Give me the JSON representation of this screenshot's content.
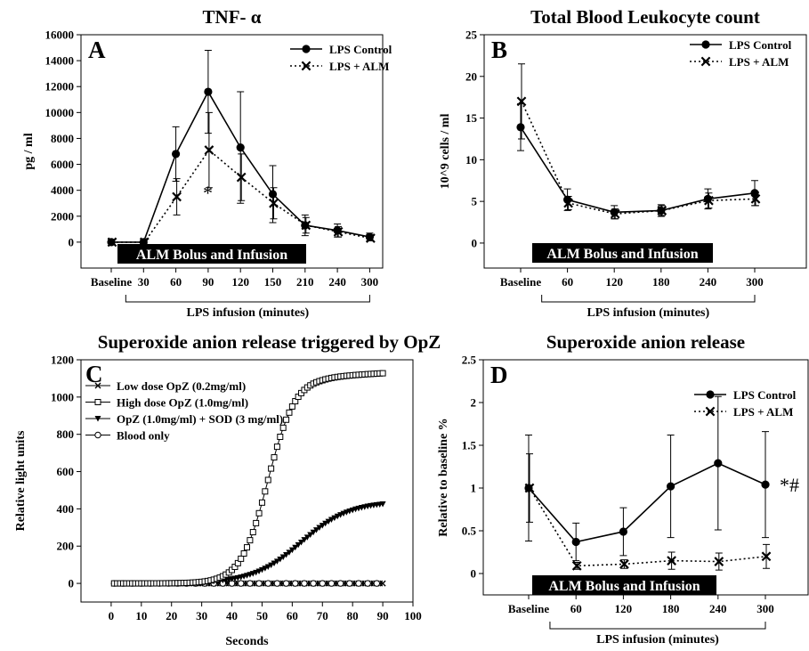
{
  "colors": {
    "ink": "#000000",
    "background": "#ffffff",
    "bar_fill": "#000000",
    "bar_text": "#ffffff"
  },
  "chart_data": [
    {
      "type": "line",
      "panel_label": "A",
      "title": "TNF- α",
      "ylabel": "pg / ml",
      "xlabel": "LPS infusion (minutes)",
      "categories": [
        "Baseline",
        "30",
        "60",
        "90",
        "120",
        "150",
        "210",
        "240",
        "300"
      ],
      "ylim": [
        -2000,
        16000
      ],
      "yticks": [
        0,
        2000,
        4000,
        6000,
        8000,
        10000,
        12000,
        14000,
        16000
      ],
      "bar_label": "ALM Bolus and Infusion",
      "annotation": "*",
      "legend_position": "top-right",
      "series": [
        {
          "name": "LPS Control",
          "marker": "filled-circle",
          "line": "solid",
          "values": [
            0,
            0,
            6800,
            11600,
            7300,
            3700,
            1300,
            900,
            400
          ],
          "errors": [
            0,
            0,
            2100,
            3200,
            4300,
            2200,
            800,
            500,
            300
          ]
        },
        {
          "name": "LPS + ALM",
          "marker": "x",
          "line": "dotted",
          "values": [
            0,
            0,
            3500,
            7100,
            5000,
            3000,
            1300,
            800,
            300
          ],
          "errors": [
            0,
            0,
            1400,
            2900,
            1800,
            1200,
            600,
            400,
            200
          ]
        }
      ]
    },
    {
      "type": "line",
      "panel_label": "B",
      "title": "Total Blood Leukocyte count",
      "ylabel": "10^9 cells / ml",
      "xlabel": "LPS infusion (minutes)",
      "categories": [
        "Baseline",
        "60",
        "120",
        "180",
        "240",
        "300"
      ],
      "ylim": [
        -3,
        25
      ],
      "yticks": [
        0,
        5,
        10,
        15,
        20,
        25
      ],
      "bar_label": "ALM Bolus and Infusion",
      "legend_position": "top-right",
      "series": [
        {
          "name": "LPS Control",
          "marker": "filled-circle",
          "line": "solid",
          "values": [
            13.9,
            5.2,
            3.7,
            3.9,
            5.3,
            6.0
          ],
          "errors": [
            2.8,
            1.3,
            0.8,
            0.7,
            1.2,
            1.5
          ]
        },
        {
          "name": "LPS + ALM",
          "marker": "x",
          "line": "dotted",
          "values": [
            17.0,
            4.8,
            3.5,
            3.9,
            5.1,
            5.3
          ],
          "errors": [
            4.5,
            0.8,
            0.6,
            0.6,
            0.9,
            0.8
          ]
        }
      ]
    },
    {
      "type": "line",
      "panel_label": "C",
      "title": "Superoxide anion release triggered by OpZ",
      "ylabel": "Relative light units",
      "xlabel": "Seconds",
      "xlim": [
        -10,
        100
      ],
      "xticks": [
        0,
        10,
        20,
        30,
        40,
        50,
        60,
        70,
        80,
        90,
        100
      ],
      "ylim": [
        -100,
        1200
      ],
      "yticks": [
        0,
        200,
        400,
        600,
        800,
        1000,
        1200
      ],
      "legend_position": "top-left",
      "series": [
        {
          "name": "Low dose OpZ (0.2mg/ml)",
          "marker": "x-small",
          "curve": "sigmoid",
          "plateau": 0,
          "midpoint": 60,
          "width": 6
        },
        {
          "name": "High dose  OpZ (1.0mg/ml)",
          "marker": "open-square",
          "curve": "sigmoid",
          "plateau": 1110,
          "midpoint": 52,
          "width": 4.5
        },
        {
          "name": "OpZ (1.0mg/ml) + SOD (3 mg/ml)",
          "marker": "filled-triangle-down",
          "curve": "sigmoid",
          "plateau": 440,
          "midpoint": 63,
          "width": 8
        },
        {
          "name": "Blood only",
          "marker": "open-circle",
          "curve": "flat",
          "plateau": 0
        }
      ]
    },
    {
      "type": "line",
      "panel_label": "D",
      "title": "Superoxide anion release",
      "ylabel": "Relative to baseline %",
      "xlabel": "LPS infusion (minutes)",
      "categories": [
        "Baseline",
        "60",
        "120",
        "180",
        "240",
        "300"
      ],
      "ylim": [
        -0.25,
        2.5
      ],
      "yticks": [
        0.0,
        0.5,
        1.0,
        1.5,
        2.0,
        2.5
      ],
      "bar_label": "ALM Bolus and Infusion",
      "annotation": "*#",
      "legend_position": "top-right",
      "series": [
        {
          "name": "LPS Control",
          "marker": "filled-circle",
          "line": "solid",
          "values": [
            1.0,
            0.37,
            0.49,
            1.02,
            1.29,
            1.04
          ],
          "errors": [
            0.62,
            0.22,
            0.28,
            0.6,
            0.78,
            0.62
          ]
        },
        {
          "name": "LPS + ALM",
          "marker": "x",
          "line": "dotted",
          "values": [
            1.0,
            0.09,
            0.11,
            0.15,
            0.14,
            0.2
          ],
          "errors": [
            0.4,
            0.04,
            0.05,
            0.1,
            0.1,
            0.14
          ]
        }
      ]
    }
  ]
}
